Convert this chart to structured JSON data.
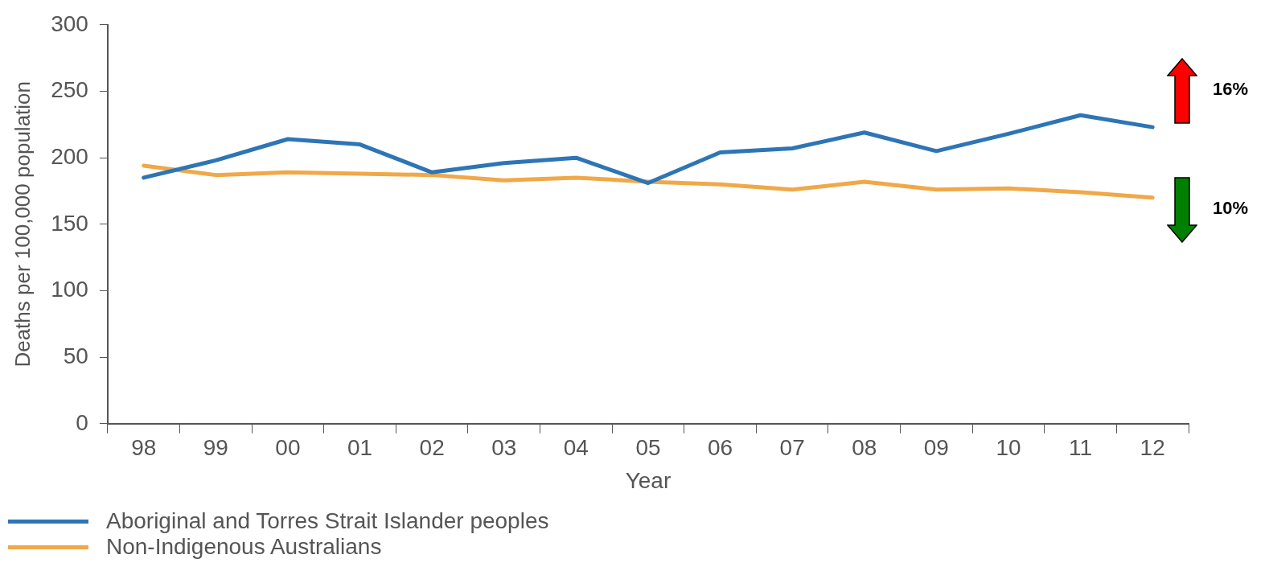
{
  "chart_data": {
    "type": "line",
    "xlabel": "Year",
    "ylabel": "Deaths per 100,000 population",
    "categories": [
      "98",
      "99",
      "00",
      "01",
      "02",
      "03",
      "04",
      "05",
      "06",
      "07",
      "08",
      "09",
      "10",
      "11",
      "12"
    ],
    "series": [
      {
        "name": "Aboriginal and Torres Strait Islander peoples",
        "color": "#2e75b6",
        "values": [
          185,
          198,
          214,
          210,
          189,
          196,
          200,
          181,
          204,
          207,
          219,
          205,
          218,
          232,
          223
        ]
      },
      {
        "name": "Non-Indigenous Australians",
        "color": "#f0a848",
        "values": [
          194,
          187,
          189,
          188,
          187,
          183,
          185,
          182,
          180,
          176,
          182,
          176,
          177,
          174,
          170
        ]
      }
    ],
    "ylim": [
      0,
      300
    ],
    "yticks": [
      0,
      50,
      100,
      150,
      200,
      250,
      300
    ],
    "grid": false,
    "legend": "bottom left",
    "marker": "none",
    "line_style": "solid",
    "annotations": [
      "16%",
      "10%"
    ]
  }
}
